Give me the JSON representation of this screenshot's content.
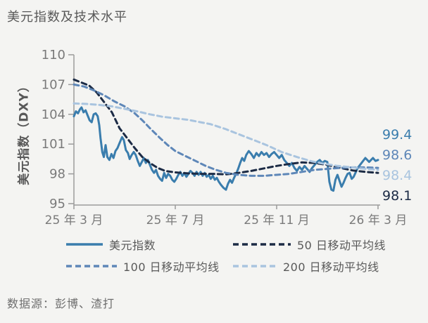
{
  "title": "美元指数及技术水平",
  "source": "数据源：彭博、渣打",
  "chart_data": {
    "type": "line",
    "title": "美元指数及技术水平",
    "xlabel": "",
    "ylabel": "美元指数（DXY）",
    "ylim": [
      95,
      110
    ],
    "yticks": [
      95,
      98,
      101,
      104,
      107,
      110
    ],
    "xtick_labels": [
      "25 年 3 月",
      "25 年 7 月",
      "25 年 11 月",
      "26 年 3 月"
    ],
    "xtick_months": [
      0,
      4,
      8,
      12
    ],
    "x_range_months": [
      0,
      12
    ],
    "grid": false,
    "legend_position": "bottom",
    "axis_color": "#9b9b9b",
    "tick_label_color": "#7a7a7a",
    "series": [
      {
        "name": "美元指数",
        "style": "solid",
        "color": "#3a7dad",
        "end_label": "99.4",
        "end_value": 99.4,
        "points": [
          [
            0,
            103.8
          ],
          [
            0.08,
            104.3
          ],
          [
            0.16,
            104.1
          ],
          [
            0.24,
            104.5
          ],
          [
            0.3,
            104.7
          ],
          [
            0.38,
            104.2
          ],
          [
            0.46,
            104.4
          ],
          [
            0.54,
            103.9
          ],
          [
            0.62,
            103.4
          ],
          [
            0.7,
            103.2
          ],
          [
            0.78,
            104.0
          ],
          [
            0.86,
            104.1
          ],
          [
            0.94,
            103.8
          ],
          [
            1.0,
            102.9
          ],
          [
            1.05,
            101.6
          ],
          [
            1.12,
            100.2
          ],
          [
            1.18,
            99.7
          ],
          [
            1.25,
            100.9
          ],
          [
            1.32,
            99.7
          ],
          [
            1.4,
            99.4
          ],
          [
            1.48,
            100.0
          ],
          [
            1.56,
            99.6
          ],
          [
            1.64,
            100.3
          ],
          [
            1.72,
            100.6
          ],
          [
            1.8,
            101.1
          ],
          [
            1.9,
            101.7
          ],
          [
            1.97,
            101.4
          ],
          [
            2.05,
            100.4
          ],
          [
            2.13,
            100.1
          ],
          [
            2.2,
            99.5
          ],
          [
            2.28,
            99.9
          ],
          [
            2.36,
            100.2
          ],
          [
            2.44,
            99.9
          ],
          [
            2.52,
            99.3
          ],
          [
            2.6,
            98.8
          ],
          [
            2.68,
            99.2
          ],
          [
            2.76,
            99.6
          ],
          [
            2.84,
            99.1
          ],
          [
            2.92,
            99.4
          ],
          [
            3.0,
            98.9
          ],
          [
            3.08,
            98.4
          ],
          [
            3.16,
            98.1
          ],
          [
            3.24,
            98.4
          ],
          [
            3.32,
            97.8
          ],
          [
            3.4,
            97.5
          ],
          [
            3.48,
            97.3
          ],
          [
            3.56,
            98.1
          ],
          [
            3.64,
            97.6
          ],
          [
            3.72,
            98.0
          ],
          [
            3.8,
            97.8
          ],
          [
            3.88,
            97.4
          ],
          [
            3.96,
            97.2
          ],
          [
            4.04,
            97.5
          ],
          [
            4.12,
            97.9
          ],
          [
            4.2,
            98.2
          ],
          [
            4.28,
            97.8
          ],
          [
            4.36,
            98.1
          ],
          [
            4.44,
            97.7
          ],
          [
            4.52,
            98.0
          ],
          [
            4.6,
            98.3
          ],
          [
            4.68,
            98.1
          ],
          [
            4.76,
            97.8
          ],
          [
            4.84,
            98.2
          ],
          [
            4.92,
            97.9
          ],
          [
            5.0,
            98.2
          ],
          [
            5.08,
            97.8
          ],
          [
            5.16,
            98.1
          ],
          [
            5.24,
            97.7
          ],
          [
            5.32,
            97.9
          ],
          [
            5.4,
            97.5
          ],
          [
            5.48,
            97.8
          ],
          [
            5.56,
            97.4
          ],
          [
            5.64,
            97.6
          ],
          [
            5.72,
            97.2
          ],
          [
            5.8,
            96.9
          ],
          [
            5.9,
            96.6
          ],
          [
            6.0,
            96.4
          ],
          [
            6.08,
            97.0
          ],
          [
            6.16,
            97.4
          ],
          [
            6.24,
            97.1
          ],
          [
            6.32,
            97.6
          ],
          [
            6.4,
            98.0
          ],
          [
            6.48,
            98.5
          ],
          [
            6.56,
            99.1
          ],
          [
            6.64,
            99.6
          ],
          [
            6.72,
            99.3
          ],
          [
            6.8,
            99.9
          ],
          [
            6.9,
            100.3
          ],
          [
            7.0,
            100.0
          ],
          [
            7.1,
            99.6
          ],
          [
            7.2,
            100.1
          ],
          [
            7.3,
            99.8
          ],
          [
            7.4,
            100.2
          ],
          [
            7.5,
            99.9
          ],
          [
            7.6,
            100.1
          ],
          [
            7.7,
            99.7
          ],
          [
            7.8,
            100.0
          ],
          [
            7.9,
            100.2
          ],
          [
            8.0,
            99.9
          ],
          [
            8.1,
            99.6
          ],
          [
            8.2,
            99.9
          ],
          [
            8.3,
            99.4
          ],
          [
            8.4,
            99.1
          ],
          [
            8.5,
            98.8
          ],
          [
            8.6,
            99.1
          ],
          [
            8.7,
            98.6
          ],
          [
            8.8,
            98.3
          ],
          [
            8.9,
            98.7
          ],
          [
            9.0,
            98.4
          ],
          [
            9.1,
            98.8
          ],
          [
            9.2,
            98.5
          ],
          [
            9.3,
            98.2
          ],
          [
            9.4,
            98.6
          ],
          [
            9.5,
            98.9
          ],
          [
            9.6,
            99.2
          ],
          [
            9.7,
            99.4
          ],
          [
            9.8,
            99.1
          ],
          [
            9.9,
            99.3
          ],
          [
            10.0,
            99.2
          ],
          [
            10.08,
            97.2
          ],
          [
            10.16,
            96.4
          ],
          [
            10.24,
            96.3
          ],
          [
            10.32,
            97.4
          ],
          [
            10.4,
            97.9
          ],
          [
            10.48,
            97.3
          ],
          [
            10.56,
            96.7
          ],
          [
            10.64,
            97.1
          ],
          [
            10.72,
            97.6
          ],
          [
            10.8,
            98.0
          ],
          [
            10.88,
            98.1
          ],
          [
            10.96,
            97.5
          ],
          [
            11.04,
            97.7
          ],
          [
            11.2,
            98.6
          ],
          [
            11.35,
            99.1
          ],
          [
            11.5,
            99.6
          ],
          [
            11.65,
            99.2
          ],
          [
            11.8,
            99.6
          ],
          [
            11.9,
            99.3
          ],
          [
            12,
            99.4
          ]
        ]
      },
      {
        "name": "50 日移动平均线",
        "style": "dashed",
        "color": "#1c2b45",
        "end_label": "98.1",
        "end_value": 98.1,
        "points": [
          [
            0,
            107.5
          ],
          [
            0.3,
            107.2
          ],
          [
            0.6,
            106.9
          ],
          [
            0.9,
            106.2
          ],
          [
            1.2,
            105.2
          ],
          [
            1.5,
            104.2
          ],
          [
            1.8,
            102.6
          ],
          [
            2.1,
            101.6
          ],
          [
            2.4,
            100.6
          ],
          [
            2.7,
            99.7
          ],
          [
            3.0,
            99.1
          ],
          [
            3.3,
            98.6
          ],
          [
            3.6,
            98.3
          ],
          [
            4.0,
            98.15
          ],
          [
            4.5,
            98.05
          ],
          [
            5.0,
            98.0
          ],
          [
            5.5,
            98.0
          ],
          [
            6.0,
            97.95
          ],
          [
            6.5,
            98.1
          ],
          [
            7.0,
            98.3
          ],
          [
            7.5,
            98.55
          ],
          [
            8.0,
            98.8
          ],
          [
            8.5,
            99.0
          ],
          [
            9.0,
            99.15
          ],
          [
            9.5,
            99.1
          ],
          [
            10.0,
            98.9
          ],
          [
            10.5,
            98.6
          ],
          [
            11.0,
            98.35
          ],
          [
            11.5,
            98.2
          ],
          [
            12,
            98.1
          ]
        ]
      },
      {
        "name": "100 日移动平均线",
        "style": "dashed",
        "color": "#5e87b8",
        "end_label": "98.6",
        "end_value": 98.6,
        "points": [
          [
            0,
            107.0
          ],
          [
            0.4,
            106.8
          ],
          [
            0.8,
            106.4
          ],
          [
            1.2,
            105.9
          ],
          [
            1.6,
            105.3
          ],
          [
            2.0,
            104.8
          ],
          [
            2.4,
            104.1
          ],
          [
            2.7,
            103.4
          ],
          [
            3.0,
            102.6
          ],
          [
            3.4,
            101.6
          ],
          [
            3.7,
            100.9
          ],
          [
            4.0,
            100.3
          ],
          [
            4.4,
            99.8
          ],
          [
            4.8,
            99.3
          ],
          [
            5.2,
            98.8
          ],
          [
            5.6,
            98.4
          ],
          [
            6.0,
            98.1
          ],
          [
            6.5,
            97.9
          ],
          [
            7.0,
            97.8
          ],
          [
            7.5,
            97.8
          ],
          [
            8.0,
            97.9
          ],
          [
            8.5,
            98.0
          ],
          [
            9.0,
            98.2
          ],
          [
            9.5,
            98.4
          ],
          [
            10.0,
            98.5
          ],
          [
            10.5,
            98.6
          ],
          [
            11.0,
            98.65
          ],
          [
            11.5,
            98.65
          ],
          [
            12,
            98.6
          ]
        ]
      },
      {
        "name": "200 日移动平均线",
        "style": "dashed",
        "color": "#a9c4df",
        "end_label": "98.4",
        "end_value": 98.4,
        "points": [
          [
            0,
            105.1
          ],
          [
            0.5,
            105.05
          ],
          [
            1.0,
            104.95
          ],
          [
            1.5,
            104.8
          ],
          [
            2.0,
            104.55
          ],
          [
            2.5,
            104.3
          ],
          [
            3.0,
            104.0
          ],
          [
            3.5,
            103.75
          ],
          [
            4.0,
            103.6
          ],
          [
            4.5,
            103.45
          ],
          [
            5.0,
            103.2
          ],
          [
            5.4,
            103.0
          ],
          [
            6.0,
            102.5
          ],
          [
            6.5,
            102.0
          ],
          [
            7.0,
            101.5
          ],
          [
            7.6,
            100.9
          ],
          [
            8.2,
            100.2
          ],
          [
            8.8,
            99.7
          ],
          [
            9.4,
            99.25
          ],
          [
            9.8,
            99.05
          ],
          [
            10.4,
            98.8
          ],
          [
            11.0,
            98.65
          ],
          [
            11.5,
            98.5
          ],
          [
            12,
            98.4
          ]
        ]
      }
    ]
  }
}
